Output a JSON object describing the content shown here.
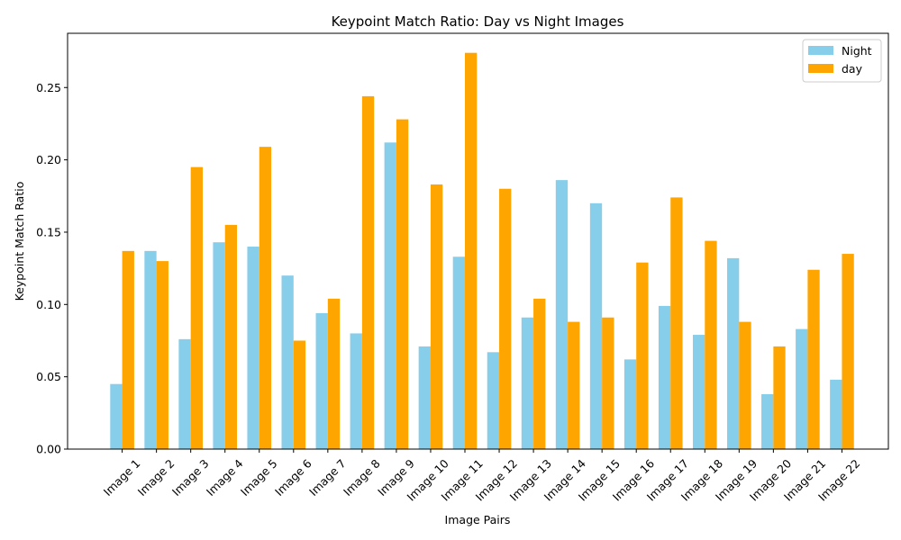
{
  "chart_data": {
    "type": "bar",
    "title": "Keypoint Match Ratio: Day vs Night Images",
    "xlabel": "Image Pairs",
    "ylabel": "Keypoint Match Ratio",
    "ylim": [
      0,
      0.2875
    ],
    "yticks": [
      "0.00",
      "0.05",
      "0.10",
      "0.15",
      "0.20",
      "0.25"
    ],
    "grid": false,
    "legend_position": "top-right",
    "categories": [
      "Image 1",
      "Image 2",
      "Image 3",
      "Image 4",
      "Image 5",
      "Image 6",
      "Image 7",
      "Image 8",
      "Image 9",
      "Image 10",
      "Image 11",
      "Image 12",
      "Image 13",
      "Image 14",
      "Image 15",
      "Image 16",
      "Image 17",
      "Image 18",
      "Image 19",
      "Image 20",
      "Image 21",
      "Image 22"
    ],
    "series": [
      {
        "name": "Night",
        "color": "#87ceeb",
        "values": [
          0.045,
          0.137,
          0.076,
          0.143,
          0.14,
          0.12,
          0.094,
          0.08,
          0.212,
          0.071,
          0.133,
          0.067,
          0.091,
          0.186,
          0.17,
          0.062,
          0.099,
          0.079,
          0.132,
          0.038,
          0.083,
          0.048
        ]
      },
      {
        "name": "day",
        "color": "#ffa500",
        "values": [
          0.137,
          0.13,
          0.195,
          0.155,
          0.209,
          0.075,
          0.104,
          0.244,
          0.228,
          0.183,
          0.274,
          0.18,
          0.104,
          0.088,
          0.091,
          0.129,
          0.174,
          0.144,
          0.088,
          0.071,
          0.124,
          0.135
        ]
      }
    ]
  }
}
